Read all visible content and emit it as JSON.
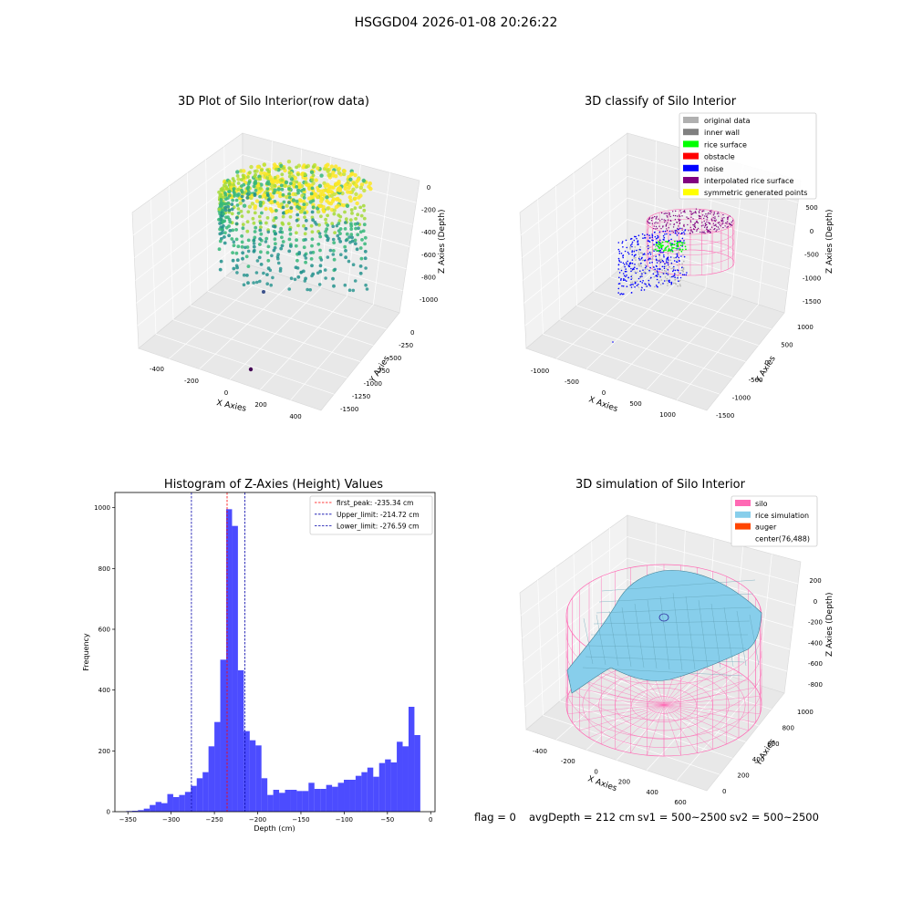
{
  "figure": {
    "suptitle": "HSGGD04 2026-01-08 20:26:22",
    "footer": {
      "flag": "flag = 0",
      "avg_depth": "avgDepth = 212 cm",
      "sv1": "sv1 = 500~2500",
      "sv2": "sv2 = 500~2500"
    }
  },
  "chart_data": [
    {
      "type": "scatter",
      "projection": "3d",
      "title": "3D Plot of Silo Interior(row data)",
      "xlabel": "X Axies",
      "ylabel": "Y Axies",
      "zlabel": "Z Axies (Depth)",
      "x_ticks": [
        "-400",
        "-200",
        "0",
        "200",
        "400"
      ],
      "y_ticks": [
        "0",
        "-250",
        "-500",
        "-750",
        "-1000",
        "-1250",
        "-1500"
      ],
      "z_ticks": [
        "0",
        "-200",
        "-400",
        "-600",
        "-800",
        "-1000"
      ],
      "xlim": [
        -480,
        480
      ],
      "ylim": [
        -1550,
        50
      ],
      "zlim": [
        -1050,
        50
      ],
      "colormap": "viridis",
      "colors": {
        "high": "#fde725",
        "mid": "#35b779",
        "low": "#21918c",
        "lowest": "#440154"
      }
    },
    {
      "type": "scatter",
      "projection": "3d",
      "title": "3D classify of Silo Interior",
      "xlabel": "X Axies",
      "ylabel": "Y Axies",
      "zlabel": "Z Axies (Depth)",
      "x_ticks": [
        "-1000",
        "-500",
        "0",
        "500",
        "1000"
      ],
      "y_ticks": [
        "1000",
        "500",
        "0",
        "-500",
        "-1000",
        "-1500"
      ],
      "z_ticks": [
        "500",
        "0",
        "-500",
        "-1000",
        "-1500"
      ],
      "legend": {
        "position": "upper right"
      },
      "series": [
        {
          "name": "original data",
          "color": "#b0b0b0"
        },
        {
          "name": "inner wall",
          "color": "#808080"
        },
        {
          "name": "rice surface",
          "color": "#00ff00"
        },
        {
          "name": "obstacle",
          "color": "#ff0000"
        },
        {
          "name": "noise",
          "color": "#0000ff"
        },
        {
          "name": "interpolated rice surface",
          "color": "#800080"
        },
        {
          "name": "symmetric generated points",
          "color": "#ffff00"
        }
      ]
    },
    {
      "type": "bar",
      "title": "Histogram of Z-Axies (Height) Values",
      "xlabel": "Depth (cm)",
      "ylabel": "Frequency",
      "xlim": [
        -365,
        5
      ],
      "ylim": [
        0,
        1050
      ],
      "x_ticks": [
        -350,
        -300,
        -250,
        -200,
        -150,
        -100,
        -50,
        0
      ],
      "y_ticks": [
        0,
        200,
        400,
        600,
        800,
        1000
      ],
      "bin_start": -352,
      "bin_width": 6.8,
      "bar_color": "#0000ff",
      "values": [
        2,
        3,
        5,
        10,
        22,
        32,
        28,
        58,
        48,
        55,
        65,
        85,
        110,
        130,
        215,
        295,
        500,
        995,
        940,
        465,
        265,
        235,
        218,
        110,
        55,
        72,
        62,
        72,
        72,
        68,
        68,
        95,
        75,
        75,
        88,
        82,
        95,
        105,
        105,
        118,
        130,
        145,
        115,
        160,
        172,
        162,
        230,
        215,
        345,
        252
      ],
      "reference_lines": [
        {
          "name": "first_peak: -235.34 cm",
          "x": -235.34,
          "color": "#ff0000"
        },
        {
          "name": "Upper_limit: -214.72 cm",
          "x": -214.72,
          "color": "#0000aa"
        },
        {
          "name": "Lower_limit: -276.59 cm",
          "x": -276.59,
          "color": "#0000aa"
        }
      ],
      "legend": {
        "position": "upper right"
      }
    },
    {
      "type": "surface",
      "projection": "3d",
      "title": "3D simulation of Silo Interior",
      "xlabel": "X Axies",
      "ylabel": "Y Axies",
      "zlabel": "Z Axies (Depth)",
      "x_ticks": [
        "-400",
        "-200",
        "0",
        "200",
        "400",
        "600"
      ],
      "y_ticks": [
        "0",
        "200",
        "400",
        "600",
        "800",
        "1000"
      ],
      "z_ticks": [
        "200",
        "0",
        "-200",
        "-400",
        "-600",
        "-800"
      ],
      "legend": {
        "position": "upper right"
      },
      "series": [
        {
          "name": "silo",
          "color": "#ff69b4"
        },
        {
          "name": "rice simulation",
          "color": "#87ceeb"
        },
        {
          "name": "auger",
          "color": "#ff4500"
        },
        {
          "name": "center(76,488)",
          "color": ""
        }
      ]
    }
  ]
}
